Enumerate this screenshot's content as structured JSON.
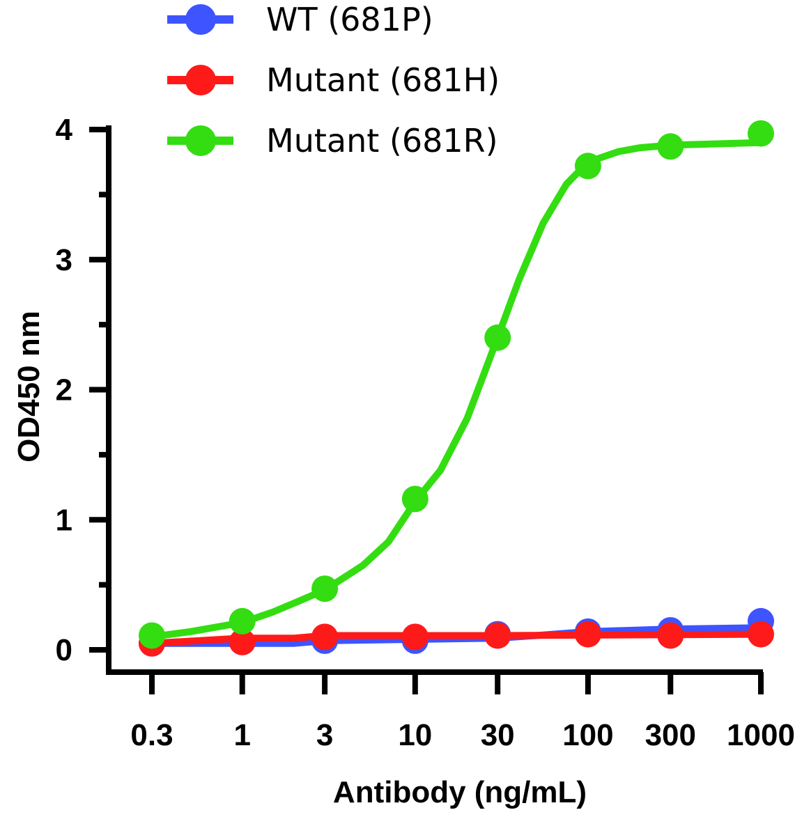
{
  "chart_data": {
    "type": "line",
    "title": "",
    "xlabel": "Antibody (ng/mL)",
    "ylabel": "OD450 nm",
    "x_scale": "log",
    "x_ticks": [
      0.3,
      1,
      3,
      10,
      30,
      100,
      300,
      1000
    ],
    "x_tick_labels": [
      "0.3",
      "1",
      "3",
      "10",
      "30",
      "100",
      "300",
      "1000"
    ],
    "y_ticks": [
      0,
      1,
      2,
      3,
      4
    ],
    "y_tick_labels": [
      "0",
      "1",
      "2",
      "3",
      "4"
    ],
    "ylim": [
      0,
      4
    ],
    "grid": false,
    "legend_position": "top",
    "x": [
      0.3,
      1,
      3,
      10,
      30,
      100,
      300,
      1000
    ],
    "series": [
      {
        "name": "WT (681P)",
        "color": "#3d54ff",
        "values": [
          0.05,
          0.06,
          0.07,
          0.07,
          0.12,
          0.14,
          0.15,
          0.22
        ],
        "fit": [
          [
            0.3,
            0.05
          ],
          [
            2,
            0.05
          ],
          [
            3,
            0.07
          ],
          [
            30,
            0.09
          ],
          [
            50,
            0.11
          ],
          [
            100,
            0.14
          ],
          [
            300,
            0.16
          ],
          [
            1000,
            0.17
          ]
        ]
      },
      {
        "name": "Mutant (681H)",
        "color": "#ff1a1a",
        "values": [
          0.05,
          0.06,
          0.1,
          0.1,
          0.11,
          0.12,
          0.11,
          0.12
        ],
        "fit": [
          [
            0.3,
            0.05
          ],
          [
            1,
            0.09
          ],
          [
            2,
            0.09
          ],
          [
            3,
            0.11
          ],
          [
            30,
            0.11
          ],
          [
            1000,
            0.12
          ]
        ]
      },
      {
        "name": "Mutant (681R)",
        "color": "#33dd11",
        "values": [
          0.11,
          0.22,
          0.47,
          1.16,
          2.4,
          3.72,
          3.87,
          3.97
        ],
        "fit": [
          [
            0.3,
            0.1
          ],
          [
            0.5,
            0.14
          ],
          [
            1,
            0.21
          ],
          [
            1.5,
            0.29
          ],
          [
            2,
            0.36
          ],
          [
            3,
            0.46
          ],
          [
            5,
            0.65
          ],
          [
            7,
            0.83
          ],
          [
            10,
            1.14
          ],
          [
            14,
            1.38
          ],
          [
            20,
            1.78
          ],
          [
            30,
            2.4
          ],
          [
            40,
            2.85
          ],
          [
            55,
            3.28
          ],
          [
            75,
            3.58
          ],
          [
            100,
            3.75
          ],
          [
            150,
            3.83
          ],
          [
            200,
            3.86
          ],
          [
            300,
            3.88
          ],
          [
            1000,
            3.9
          ]
        ]
      }
    ]
  }
}
